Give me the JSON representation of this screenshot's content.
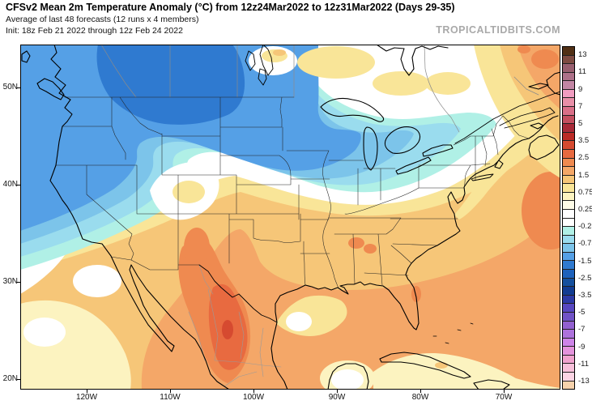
{
  "header": {
    "title": "CFSv2 Mean 2m Temperature Anomaly (°C) from 12z24Mar2022 to 12z31Mar2022 (Days 29-35)",
    "subtitle": "Average of last 48 forecasts (12 runs x 4 members)",
    "init_line": "Init: 18z Feb 21 2022 through 12z Feb 24 2022",
    "watermark": "TROPICALTIDBITS.COM"
  },
  "map": {
    "variable": "2m Temperature Anomaly",
    "units": "°C",
    "y_axis_labels": [
      "50N",
      "40N",
      "30N",
      "20N"
    ],
    "x_axis_labels": [
      "120W",
      "110W",
      "100W",
      "90W",
      "80W",
      "70W"
    ]
  },
  "colorbar": {
    "labels": [
      "13",
      "11",
      "9",
      "7",
      "5",
      "3.5",
      "2.5",
      "1.5",
      "0.75",
      "0.25",
      "-0.25",
      "-0.75",
      "-1.5",
      "-2.5",
      "-3.5",
      "-5",
      "-7",
      "-9",
      "-11",
      "-13"
    ],
    "colors": [
      "#513015",
      "#7e4b41",
      "#985f6f",
      "#ad7189",
      "#c286a4",
      "#f09cc0",
      "#e88fa8",
      "#d96f88",
      "#c44f60",
      "#a82a38",
      "#bb2b26",
      "#d64a30",
      "#e86a40",
      "#ef8a50",
      "#f4a768",
      "#f6c678",
      "#f9e598",
      "#fcf3c0",
      "#fefce8",
      "#ffffff",
      "#ffffff",
      "#b0f0e6",
      "#9adcee",
      "#7cc4ea",
      "#55a0e6",
      "#2f7ad0",
      "#1e62bc",
      "#15509e",
      "#123c92",
      "#2c3aa6",
      "#5747c0",
      "#7053c6",
      "#9260d0",
      "#ad72dc",
      "#ce84e8",
      "#e493dc",
      "#f0a2ce",
      "#f7c0da",
      "#fbd4e4",
      "#f6d2ac"
    ]
  }
}
